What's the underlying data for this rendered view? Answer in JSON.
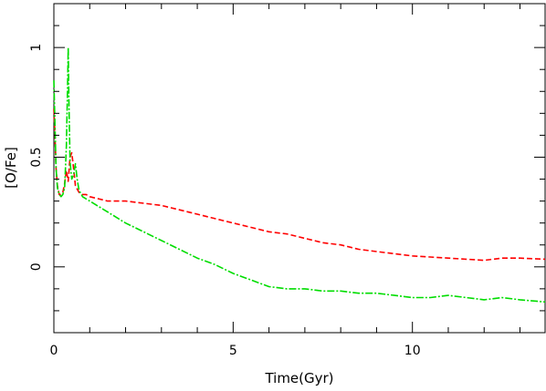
{
  "chart_data": {
    "type": "line",
    "title": "",
    "xlabel": "Time(Gyr)",
    "ylabel": "[O/Fe]",
    "xlim": [
      0,
      13.7
    ],
    "ylim": [
      -0.3,
      1.2
    ],
    "xticks": [
      0,
      5,
      10
    ],
    "yticks": [
      0,
      0.5,
      1
    ],
    "xtick_labels": [
      "0",
      "5",
      "10"
    ],
    "ytick_labels": [
      "0",
      "0.5",
      "1"
    ],
    "grid": false,
    "legend": "none",
    "series": [
      {
        "color": "#ff0000",
        "style": "dashed",
        "x": [
          0.0,
          0.03,
          0.06,
          0.1,
          0.15,
          0.2,
          0.25,
          0.3,
          0.35,
          0.4,
          0.45,
          0.5,
          0.55,
          0.6,
          0.7,
          0.8,
          0.9,
          1.0,
          1.5,
          2.0,
          2.5,
          3.0,
          3.5,
          4.0,
          4.5,
          5.0,
          5.5,
          6.0,
          6.5,
          7.0,
          7.5,
          8.0,
          8.5,
          9.0,
          9.5,
          10.0,
          10.5,
          11.0,
          11.5,
          12.0,
          12.5,
          13.0,
          13.7
        ],
        "y": [
          0.72,
          0.6,
          0.45,
          0.37,
          0.33,
          0.33,
          0.34,
          0.38,
          0.44,
          0.39,
          0.5,
          0.52,
          0.45,
          0.37,
          0.34,
          0.33,
          0.33,
          0.32,
          0.3,
          0.3,
          0.29,
          0.28,
          0.26,
          0.24,
          0.22,
          0.2,
          0.18,
          0.16,
          0.15,
          0.13,
          0.11,
          0.1,
          0.08,
          0.07,
          0.06,
          0.05,
          0.045,
          0.04,
          0.035,
          0.03,
          0.04,
          0.04,
          0.035
        ]
      },
      {
        "color": "#00dd00",
        "style": "dash-dot",
        "x": [
          0.0,
          0.03,
          0.06,
          0.1,
          0.15,
          0.2,
          0.25,
          0.3,
          0.35,
          0.38,
          0.4,
          0.42,
          0.45,
          0.5,
          0.55,
          0.6,
          0.65,
          0.7,
          0.8,
          0.9,
          1.0,
          1.5,
          2.0,
          2.5,
          3.0,
          3.5,
          4.0,
          4.5,
          5.0,
          5.5,
          6.0,
          6.5,
          7.0,
          7.5,
          8.0,
          8.5,
          9.0,
          9.5,
          10.0,
          10.5,
          11.0,
          11.5,
          12.0,
          12.5,
          13.0,
          13.7
        ],
        "y": [
          0.85,
          0.65,
          0.45,
          0.36,
          0.33,
          0.32,
          0.33,
          0.36,
          0.55,
          0.8,
          1.0,
          0.75,
          0.48,
          0.4,
          0.42,
          0.47,
          0.4,
          0.35,
          0.32,
          0.31,
          0.3,
          0.25,
          0.2,
          0.16,
          0.12,
          0.08,
          0.04,
          0.01,
          -0.03,
          -0.06,
          -0.09,
          -0.1,
          -0.1,
          -0.11,
          -0.11,
          -0.12,
          -0.12,
          -0.13,
          -0.14,
          -0.14,
          -0.13,
          -0.14,
          -0.15,
          -0.14,
          -0.15,
          -0.16
        ]
      }
    ]
  }
}
